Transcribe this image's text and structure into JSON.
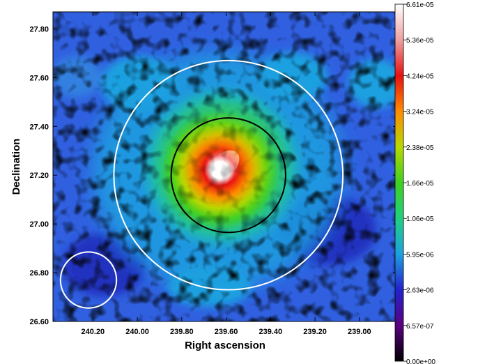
{
  "chart_data": {
    "type": "heatmap",
    "xlabel": "Right ascension",
    "ylabel": "Declination",
    "x_reversed": true,
    "xlim": [
      240.38,
      238.83
    ],
    "ylim": [
      26.6,
      27.87
    ],
    "x_ticks": [
      {
        "value": 240.2,
        "label": "240.20"
      },
      {
        "value": 240.0,
        "label": "240.00"
      },
      {
        "value": 239.8,
        "label": "239.80"
      },
      {
        "value": 239.6,
        "label": "239.60"
      },
      {
        "value": 239.4,
        "label": "239.40"
      },
      {
        "value": 239.2,
        "label": "239.20"
      },
      {
        "value": 239.0,
        "label": "239.00"
      }
    ],
    "y_ticks": [
      {
        "value": 26.6,
        "label": "26.60"
      },
      {
        "value": 26.8,
        "label": "26.80"
      },
      {
        "value": 27.0,
        "label": "27.00"
      },
      {
        "value": 27.2,
        "label": "27.20"
      },
      {
        "value": 27.4,
        "label": "27.40"
      },
      {
        "value": 27.6,
        "label": "27.60"
      },
      {
        "value": 27.8,
        "label": "27.80"
      }
    ],
    "colorbar": {
      "labels": [
        "0.00e+00",
        "6.57e-07",
        "2.63e-06",
        "5.95e-06",
        "1.06e-05",
        "1.66e-05",
        "2.38e-05",
        "3.24e-05",
        "4.24e-05",
        "5.36e-05",
        "6.61e-05"
      ],
      "colors": [
        "#000000",
        "#5a0080",
        "#2222cc",
        "#1ea0e0",
        "#20d080",
        "#40d020",
        "#b8d800",
        "#ff8c00",
        "#e81010",
        "#f0a0a0",
        "#ffffff"
      ]
    },
    "peak": {
      "ra": 239.58,
      "dec": 27.22,
      "value": 6.61e-05
    },
    "circles": [
      {
        "name": "outer-circle",
        "ra": 239.59,
        "dec": 27.2,
        "radius_deg": 0.47,
        "color": "#ffffff"
      },
      {
        "name": "inner-circle",
        "ra": 239.59,
        "dec": 27.2,
        "radius_deg": 0.235,
        "color": "#000000"
      },
      {
        "name": "small-circle",
        "ra": 240.22,
        "dec": 26.77,
        "radius_deg": 0.115,
        "color": "#ffffff"
      }
    ]
  }
}
